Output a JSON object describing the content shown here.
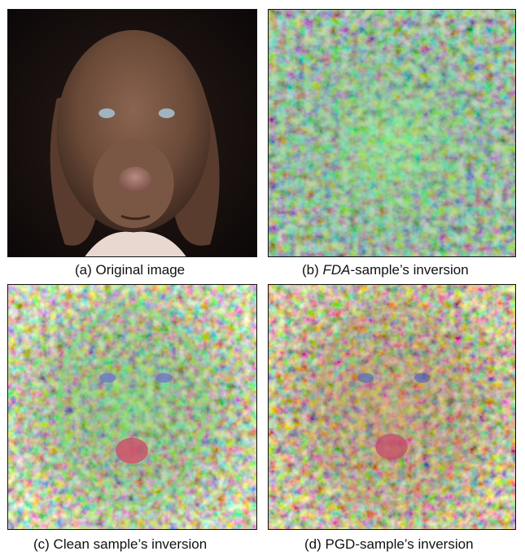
{
  "panels": [
    {
      "id": "a",
      "caption_prefix": "(a) Original image",
      "caption_italic": "",
      "caption_suffix": ""
    },
    {
      "id": "b",
      "caption_prefix": "(b) ",
      "caption_italic": "FDA",
      "caption_suffix": "-sample’s inversion"
    },
    {
      "id": "c",
      "caption_prefix": "(c) Clean sample’s inversion",
      "caption_italic": "",
      "caption_suffix": ""
    },
    {
      "id": "d",
      "caption_prefix": "(d) PGD-sample’s inversion",
      "caption_italic": "",
      "caption_suffix": ""
    }
  ],
  "colors": {
    "dog_fur": "#6b4a38",
    "background_dark": "#151010",
    "noise_green": "#5fd86a",
    "noise_red": "#d8405a",
    "noise_blue": "#4a5ad0"
  }
}
